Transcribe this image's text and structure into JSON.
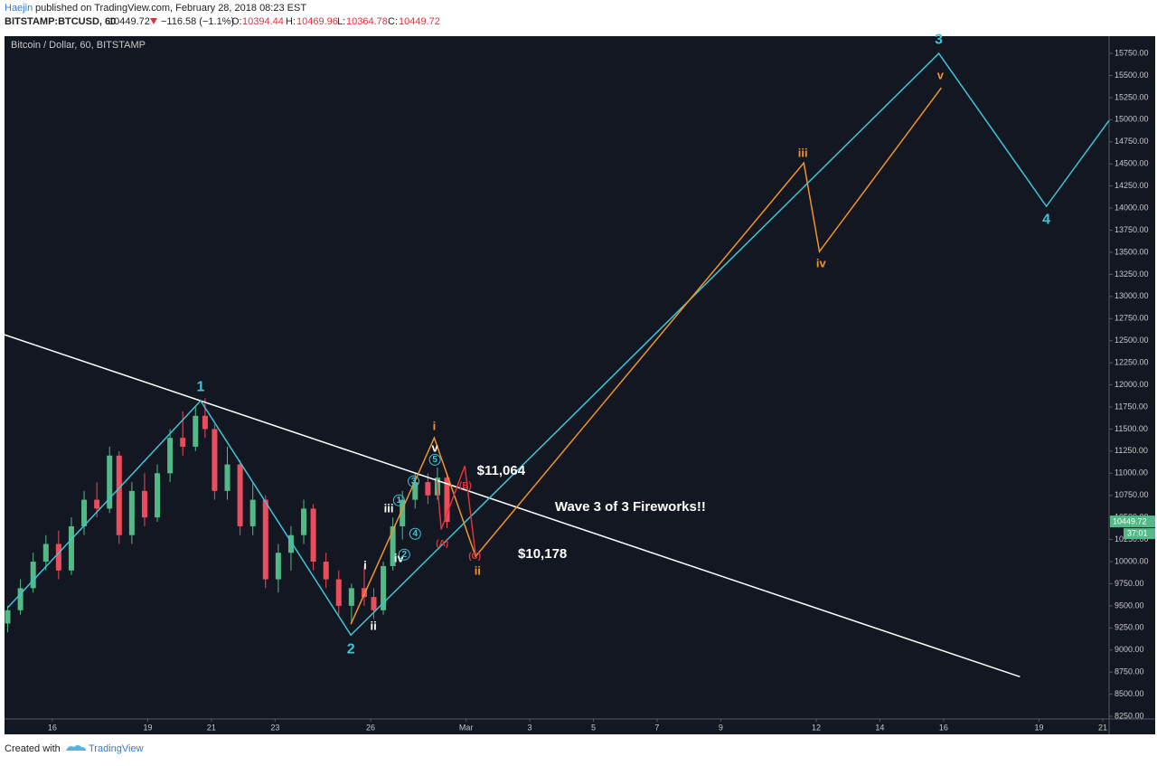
{
  "header": {
    "author": "Haejin",
    "published": "published on TradingView.com, February 28, 2018 08:23 EST",
    "symbol": "BITSTAMP:BTCUSD, 60",
    "last": "10449.72",
    "change": "−116.58 (−1.1%)",
    "o_label": "O:",
    "open": "10394.44",
    "h_label": "H:",
    "high": "10469.96",
    "l_label": "L:",
    "low": "10364.78",
    "c_label": "C:",
    "close": "10449.72"
  },
  "footer": {
    "created": "Created with",
    "brand": "TradingView"
  },
  "chart_data": {
    "type": "candlestick",
    "title": "Bitcoin / Dollar, 60, BITSTAMP",
    "up_color": "#53b987",
    "down_color": "#eb4d5c",
    "xlim": [
      14.5,
      49.2
    ],
    "ylim": [
      8220,
      15945
    ],
    "xticks": [
      {
        "value": 16,
        "label": "16"
      },
      {
        "value": 19,
        "label": "19"
      },
      {
        "value": 21,
        "label": "21"
      },
      {
        "value": 23,
        "label": "23"
      },
      {
        "value": 26,
        "label": "26"
      },
      {
        "value": 29,
        "label": "Mar"
      },
      {
        "value": 31,
        "label": "3"
      },
      {
        "value": 33,
        "label": "5"
      },
      {
        "value": 35,
        "label": "7"
      },
      {
        "value": 37,
        "label": "9"
      },
      {
        "value": 40,
        "label": "12"
      },
      {
        "value": 42,
        "label": "14"
      },
      {
        "value": 44,
        "label": "16"
      },
      {
        "value": 47,
        "label": "19"
      },
      {
        "value": 49,
        "label": "21"
      }
    ],
    "yticks": [
      {
        "value": 8250,
        "label": "8250.00"
      },
      {
        "value": 8500,
        "label": "8500.00"
      },
      {
        "value": 8750,
        "label": "8750.00"
      },
      {
        "value": 9000,
        "label": "9000.00"
      },
      {
        "value": 9250,
        "label": "9250.00"
      },
      {
        "value": 9500,
        "label": "9500.00"
      },
      {
        "value": 9750,
        "label": "9750.00"
      },
      {
        "value": 10000,
        "label": "10000.00"
      },
      {
        "value": 10250,
        "label": "10250.00"
      },
      {
        "value": 10500,
        "label": "10500.00"
      },
      {
        "value": 10750,
        "label": "10750.00"
      },
      {
        "value": 11000,
        "label": "11000.00"
      },
      {
        "value": 11250,
        "label": "11250.00"
      },
      {
        "value": 11500,
        "label": "11500.00"
      },
      {
        "value": 11750,
        "label": "11750.00"
      },
      {
        "value": 12000,
        "label": "12000.00"
      },
      {
        "value": 12250,
        "label": "12250.00"
      },
      {
        "value": 12500,
        "label": "12500.00"
      },
      {
        "value": 12750,
        "label": "12750.00"
      },
      {
        "value": 13000,
        "label": "13000.00"
      },
      {
        "value": 13250,
        "label": "13250.00"
      },
      {
        "value": 13500,
        "label": "13500.00"
      },
      {
        "value": 13750,
        "label": "13750.00"
      },
      {
        "value": 14000,
        "label": "14000.00"
      },
      {
        "value": 14250,
        "label": "14250.00"
      },
      {
        "value": 14500,
        "label": "14500.00"
      },
      {
        "value": 14750,
        "label": "14750.00"
      },
      {
        "value": 15000,
        "label": "15000.00"
      },
      {
        "value": 15250,
        "label": "15250.00"
      },
      {
        "value": 15500,
        "label": "15500.00"
      },
      {
        "value": 15750,
        "label": "15750.00"
      }
    ],
    "x": [
      14.6,
      15.0,
      15.4,
      15.8,
      16.2,
      16.6,
      17.0,
      17.4,
      17.8,
      18.1,
      18.5,
      18.9,
      19.3,
      19.7,
      20.1,
      20.5,
      20.8,
      21.1,
      21.5,
      21.9,
      22.3,
      22.7,
      23.1,
      23.5,
      23.9,
      24.2,
      24.6,
      25.0,
      25.4,
      25.8,
      26.1,
      26.4,
      26.7,
      27.0,
      27.4,
      27.8,
      28.1,
      28.4
    ],
    "open": [
      9300,
      9450,
      9700,
      10000,
      10200,
      9900,
      10400,
      10700,
      10600,
      11200,
      10300,
      10800,
      10500,
      11000,
      11400,
      11300,
      11650,
      11500,
      10800,
      11100,
      10400,
      10700,
      9800,
      10100,
      10300,
      10600,
      10000,
      9800,
      9500,
      9700,
      9600,
      9450,
      9950,
      10400,
      10700,
      10900,
      10750,
      10950
    ],
    "high": [
      9500,
      9800,
      10100,
      10300,
      10350,
      10500,
      10800,
      10900,
      11300,
      11250,
      10900,
      11000,
      11100,
      11500,
      11700,
      11750,
      11850,
      11550,
      11300,
      11150,
      10900,
      10750,
      10200,
      10400,
      10700,
      10650,
      10100,
      9900,
      9750,
      9950,
      9700,
      10000,
      10500,
      10800,
      11000,
      11000,
      11064,
      11000
    ],
    "low": [
      9200,
      9400,
      9650,
      9900,
      9800,
      9850,
      10300,
      10500,
      10550,
      10200,
      10200,
      10400,
      10450,
      10900,
      11200,
      11250,
      11400,
      10700,
      10700,
      10300,
      10300,
      9700,
      9650,
      9900,
      10200,
      9900,
      9700,
      9400,
      9300,
      9500,
      9350,
      9400,
      9900,
      10250,
      10600,
      10650,
      10700,
      10380
    ],
    "close": [
      9450,
      9700,
      10000,
      10200,
      9900,
      10400,
      10700,
      10600,
      11200,
      10300,
      10800,
      10500,
      11000,
      11400,
      11300,
      11650,
      11500,
      10800,
      11100,
      10400,
      10700,
      9800,
      10100,
      10300,
      10600,
      10000,
      9800,
      9500,
      9700,
      9600,
      9450,
      9950,
      10400,
      10700,
      10900,
      10750,
      10950,
      10450
    ],
    "price_tag": {
      "price": 10449.72,
      "countdown": "37:01",
      "color": "#53b987"
    },
    "drawings": [
      {
        "color": "#ffffff",
        "x": [
          14.5,
          46.4
        ],
        "y": [
          12567,
          8698
        ]
      },
      {
        "color": "#3ec6d6",
        "x": [
          14.6,
          20.66,
          25.38,
          43.85,
          47.23,
          49.2
        ],
        "y": [
          9480,
          11820,
          9169,
          15750,
          14020,
          14992
        ]
      },
      {
        "color": "#f0932b",
        "x": [
          25.38,
          28.0,
          29.3,
          39.61,
          40.1,
          43.93
        ],
        "y": [
          9292,
          11400,
          10059,
          14511,
          13508,
          15361
        ]
      },
      {
        "color": "#e0323a",
        "x": [
          28.08,
          28.22,
          28.96,
          29.3
        ],
        "y": [
          10929,
          10366,
          11083,
          10070
        ]
      }
    ],
    "annotations": [
      {
        "text": "1",
        "color": "#3ec6d6",
        "x": 20.66,
        "y": 11970,
        "size": 16
      },
      {
        "text": "2",
        "color": "#3ec6d6",
        "x": 25.38,
        "y": 9006,
        "size": 16
      },
      {
        "text": "3",
        "color": "#3ec6d6",
        "x": 43.85,
        "y": 15903,
        "size": 16
      },
      {
        "text": "4",
        "color": "#3ec6d6",
        "x": 47.23,
        "y": 13866,
        "size": 16
      },
      {
        "text": "i",
        "color": "#f0932b",
        "x": 28.0,
        "y": 11523,
        "size": 13
      },
      {
        "text": "ii",
        "color": "#f0932b",
        "x": 29.36,
        "y": 9886,
        "size": 13
      },
      {
        "text": "iii",
        "color": "#f0932b",
        "x": 39.58,
        "y": 14613,
        "size": 13
      },
      {
        "text": "iv",
        "color": "#f0932b",
        "x": 40.15,
        "y": 13365,
        "size": 13
      },
      {
        "text": "v",
        "color": "#f0932b",
        "x": 43.9,
        "y": 15494,
        "size": 13
      },
      {
        "text": "i",
        "color": "#ffffff",
        "x": 25.83,
        "y": 9947,
        "size": 13
      },
      {
        "text": "ii",
        "color": "#ffffff",
        "x": 26.09,
        "y": 9261,
        "size": 13
      },
      {
        "text": "iii",
        "color": "#ffffff",
        "x": 26.57,
        "y": 10592,
        "size": 13
      },
      {
        "text": "iv",
        "color": "#ffffff",
        "x": 26.89,
        "y": 10029,
        "size": 13
      },
      {
        "text": "v",
        "color": "#ffffff",
        "x": 28.02,
        "y": 11277,
        "size": 13
      },
      {
        "text": "1",
        "color": "#3ec6d6",
        "x": 26.89,
        "y": 10694,
        "size": 10,
        "circle": true
      },
      {
        "text": "2",
        "color": "#3ec6d6",
        "x": 27.06,
        "y": 10080,
        "size": 10,
        "circle": true
      },
      {
        "text": "3",
        "color": "#3ec6d6",
        "x": 27.35,
        "y": 10909,
        "size": 10,
        "circle": true
      },
      {
        "text": "4",
        "color": "#3ec6d6",
        "x": 27.4,
        "y": 10315,
        "size": 10,
        "circle": true
      },
      {
        "text": "5",
        "color": "#3ec6d6",
        "x": 28.02,
        "y": 11153,
        "size": 10,
        "circle": true
      },
      {
        "text": "(A)",
        "color": "#e0323a",
        "x": 28.25,
        "y": 10200,
        "size": 10
      },
      {
        "text": "(B)",
        "color": "#e0323a",
        "x": 28.98,
        "y": 10857,
        "size": 10
      },
      {
        "text": "(C)",
        "color": "#e0323a",
        "x": 29.27,
        "y": 10060,
        "size": 10
      },
      {
        "text": "$11,064",
        "color": "#ffffff",
        "x": 30.1,
        "y": 11021,
        "size": 15
      },
      {
        "text": "$10,178",
        "color": "#ffffff",
        "x": 31.4,
        "y": 10080,
        "size": 15
      },
      {
        "text": "Wave 3 of 3 Fireworks!!",
        "color": "#ffffff",
        "x": 34.16,
        "y": 10612,
        "size": 15
      }
    ]
  }
}
